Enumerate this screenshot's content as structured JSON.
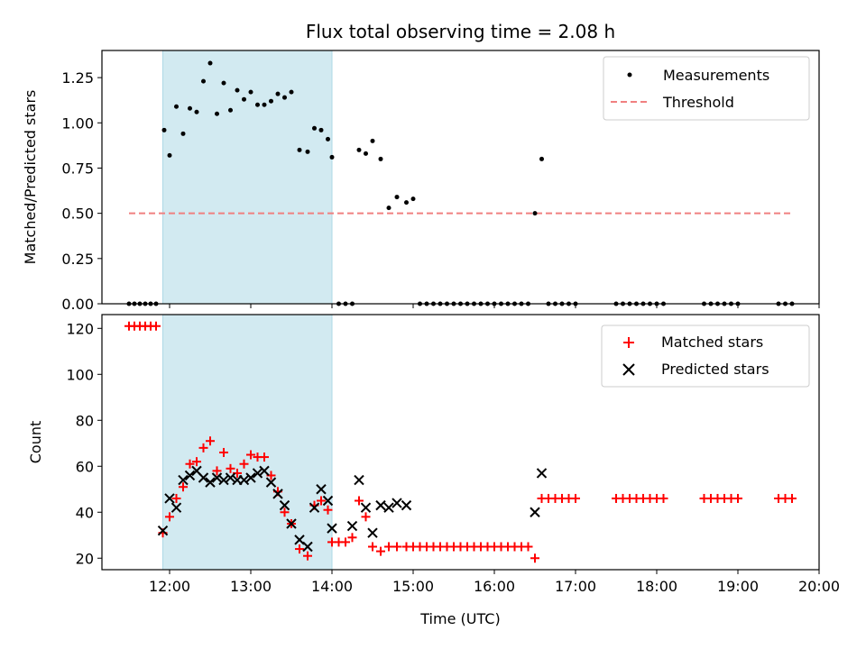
{
  "chart_data": {
    "title": "Flux total observing time = 2.08 h",
    "xlabel": "Time (UTC)",
    "x_ticks": [
      "12:00",
      "13:00",
      "14:00",
      "15:00",
      "16:00",
      "17:00",
      "18:00",
      "19:00",
      "20:00"
    ],
    "xlim": [
      "11:10",
      "20:00"
    ],
    "shaded_interval": {
      "start": "11:55",
      "end": "14:00",
      "color": "#add8e6"
    },
    "panels": [
      {
        "type": "scatter",
        "ylabel": "Matched/Predicted stars",
        "ylim": [
          0,
          1.4
        ],
        "y_ticks": [
          "0.00",
          "0.25",
          "0.50",
          "0.75",
          "1.00",
          "1.25"
        ],
        "legend": {
          "placement": "top-right",
          "entries": [
            "Measurements",
            "Threshold"
          ]
        },
        "threshold": {
          "name": "Threshold",
          "value": 0.5,
          "x_range": [
            "11:30",
            "19:40"
          ],
          "color": "#f08080",
          "style": "dashed"
        },
        "series": [
          {
            "name": "Measurements",
            "marker": "dot",
            "color": "#000000",
            "x": [
              "11:30",
              "11:34",
              "11:38",
              "11:42",
              "11:46",
              "11:50",
              "11:56",
              "12:00",
              "12:05",
              "12:10",
              "12:15",
              "12:20",
              "12:25",
              "12:30",
              "12:35",
              "12:40",
              "12:45",
              "12:50",
              "12:55",
              "13:00",
              "13:05",
              "13:10",
              "13:15",
              "13:20",
              "13:25",
              "13:30",
              "13:36",
              "13:42",
              "13:47",
              "13:52",
              "13:57",
              "14:00",
              "14:05",
              "14:10",
              "14:15",
              "14:20",
              "14:25",
              "14:30",
              "14:36",
              "14:42",
              "14:48",
              "14:55",
              "15:00",
              "15:05",
              "15:10",
              "15:15",
              "15:20",
              "15:25",
              "15:30",
              "15:35",
              "15:40",
              "15:45",
              "15:50",
              "15:55",
              "16:00",
              "16:05",
              "16:10",
              "16:15",
              "16:20",
              "16:25",
              "16:30",
              "16:35",
              "16:40",
              "16:45",
              "16:50",
              "16:55",
              "17:00",
              "17:30",
              "17:35",
              "17:40",
              "17:45",
              "17:50",
              "17:55",
              "18:00",
              "18:05",
              "18:35",
              "18:40",
              "18:45",
              "18:50",
              "18:55",
              "19:00",
              "19:30",
              "19:35",
              "19:40"
            ],
            "y": [
              0,
              0,
              0,
              0,
              0,
              0,
              0.96,
              0.82,
              1.09,
              0.94,
              1.08,
              1.06,
              1.23,
              1.33,
              1.05,
              1.22,
              1.07,
              1.18,
              1.13,
              1.17,
              1.1,
              1.1,
              1.12,
              1.16,
              1.14,
              1.17,
              0.85,
              0.84,
              0.97,
              0.96,
              0.91,
              0.81,
              0,
              0,
              0,
              0.85,
              0.83,
              0.9,
              0.8,
              0.53,
              0.59,
              0.56,
              0.58,
              0,
              0,
              0,
              0,
              0,
              0,
              0,
              0,
              0,
              0,
              0,
              0,
              0,
              0,
              0,
              0,
              0,
              0.5,
              0.8,
              0,
              0,
              0,
              0,
              0,
              0,
              0,
              0,
              0,
              0,
              0,
              0,
              0,
              0,
              0,
              0,
              0,
              0,
              0,
              0,
              0,
              0
            ]
          }
        ]
      },
      {
        "type": "scatter",
        "ylabel": "Count",
        "ylim": [
          15,
          126
        ],
        "y_ticks": [
          "20",
          "40",
          "60",
          "80",
          "100",
          "120"
        ],
        "legend": {
          "placement": "top-right",
          "entries": [
            "Matched stars",
            "Predicted stars"
          ]
        },
        "series": [
          {
            "name": "Matched stars",
            "marker": "plus",
            "color": "#ff0000",
            "x": [
              "11:30",
              "11:34",
              "11:38",
              "11:42",
              "11:46",
              "11:50",
              "11:55",
              "12:00",
              "12:05",
              "12:10",
              "12:15",
              "12:20",
              "12:25",
              "12:30",
              "12:35",
              "12:40",
              "12:45",
              "12:50",
              "12:55",
              "13:00",
              "13:05",
              "13:10",
              "13:15",
              "13:20",
              "13:25",
              "13:30",
              "13:36",
              "13:42",
              "13:47",
              "13:52",
              "13:57",
              "14:00",
              "14:05",
              "14:10",
              "14:15",
              "14:20",
              "14:25",
              "14:30",
              "14:36",
              "14:42",
              "14:48",
              "14:55",
              "15:00",
              "15:05",
              "15:10",
              "15:15",
              "15:20",
              "15:25",
              "15:30",
              "15:35",
              "15:40",
              "15:45",
              "15:50",
              "15:55",
              "16:00",
              "16:05",
              "16:10",
              "16:15",
              "16:20",
              "16:25",
              "16:30",
              "16:35",
              "16:40",
              "16:45",
              "16:50",
              "16:55",
              "17:00",
              "17:30",
              "17:35",
              "17:40",
              "17:45",
              "17:50",
              "17:55",
              "18:00",
              "18:05",
              "18:35",
              "18:40",
              "18:45",
              "18:50",
              "18:55",
              "19:00",
              "19:30",
              "19:35",
              "19:40"
            ],
            "y": [
              121,
              121,
              121,
              121,
              121,
              121,
              31,
              38,
              46,
              51,
              61,
              62,
              68,
              71,
              58,
              66,
              59,
              57,
              61,
              65,
              64,
              64,
              56,
              49,
              40,
              35,
              24,
              21,
              43,
              45,
              41,
              27,
              27,
              27,
              29,
              45,
              38,
              25,
              23,
              25,
              25,
              25,
              25,
              25,
              25,
              25,
              25,
              25,
              25,
              25,
              25,
              25,
              25,
              25,
              25,
              25,
              25,
              25,
              25,
              25,
              20,
              46,
              46,
              46,
              46,
              46,
              46,
              46,
              46,
              46,
              46,
              46,
              46,
              46,
              46,
              46,
              46,
              46,
              46,
              46,
              46,
              46,
              46,
              46
            ]
          },
          {
            "name": "Predicted stars",
            "marker": "x",
            "color": "#000000",
            "x": [
              "11:55",
              "12:00",
              "12:05",
              "12:10",
              "12:15",
              "12:20",
              "12:25",
              "12:30",
              "12:35",
              "12:40",
              "12:45",
              "12:50",
              "12:55",
              "13:00",
              "13:05",
              "13:10",
              "13:15",
              "13:20",
              "13:25",
              "13:30",
              "13:36",
              "13:42",
              "13:47",
              "13:52",
              "13:57",
              "14:00",
              "14:15",
              "14:20",
              "14:25",
              "14:30",
              "14:36",
              "14:42",
              "14:48",
              "14:55",
              "16:30",
              "16:35"
            ],
            "y": [
              32,
              46,
              42,
              54,
              56,
              58,
              55,
              53,
              55,
              54,
              55,
              54,
              54,
              55,
              57,
              58,
              53,
              48,
              43,
              35,
              28,
              25,
              42,
              50,
              45,
              33,
              34,
              54,
              42,
              31,
              43,
              42,
              44,
              43,
              40,
              57
            ]
          }
        ]
      }
    ]
  }
}
